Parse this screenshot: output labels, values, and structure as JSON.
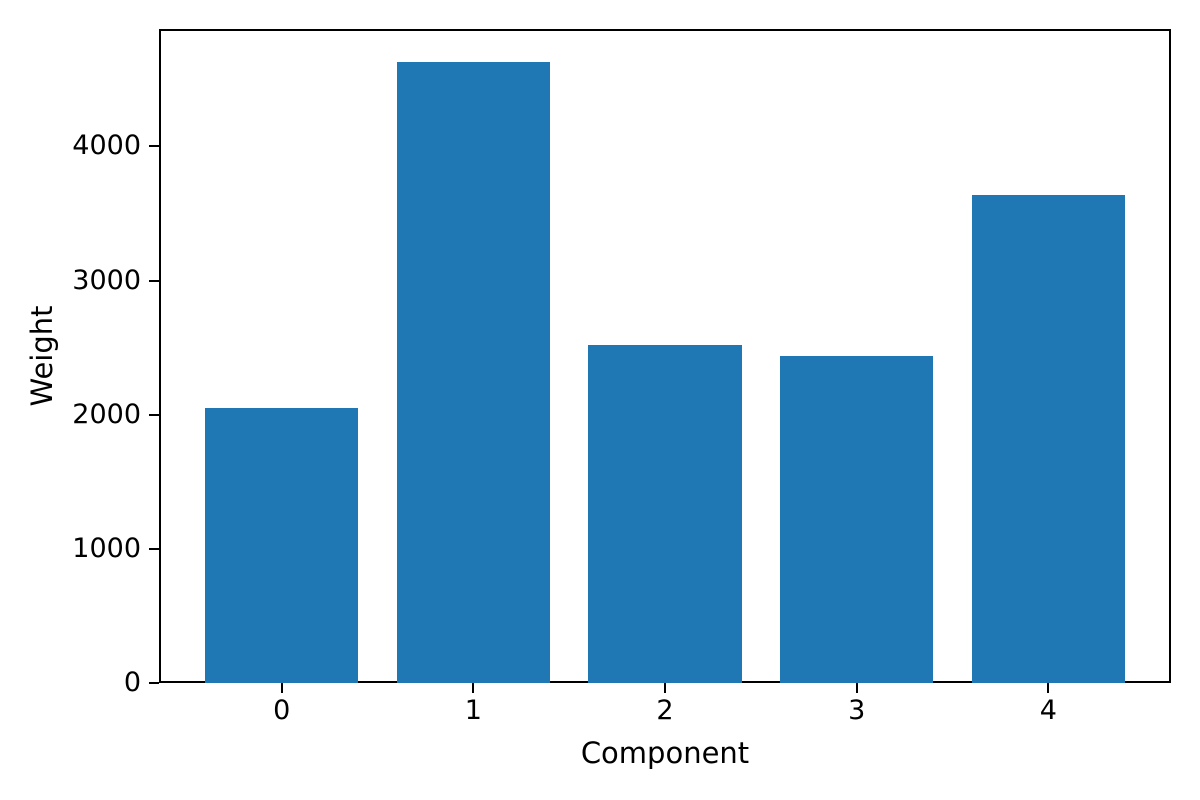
{
  "chart_data": {
    "type": "bar",
    "categories": [
      "0",
      "1",
      "2",
      "3",
      "4"
    ],
    "values": [
      2050,
      4630,
      2520,
      2440,
      3640
    ],
    "title": "",
    "xlabel": "Component",
    "ylabel": "Weight",
    "ylim": [
      0,
      4875
    ],
    "xlim": [
      -0.64,
      4.64
    ],
    "yticks": [
      0,
      1000,
      2000,
      3000,
      4000
    ],
    "bar_width_fraction": 0.8,
    "bar_color": "#1f77b4",
    "axis_color": "#000000",
    "background_color": "#ffffff",
    "grid": "off",
    "legend": "none"
  }
}
